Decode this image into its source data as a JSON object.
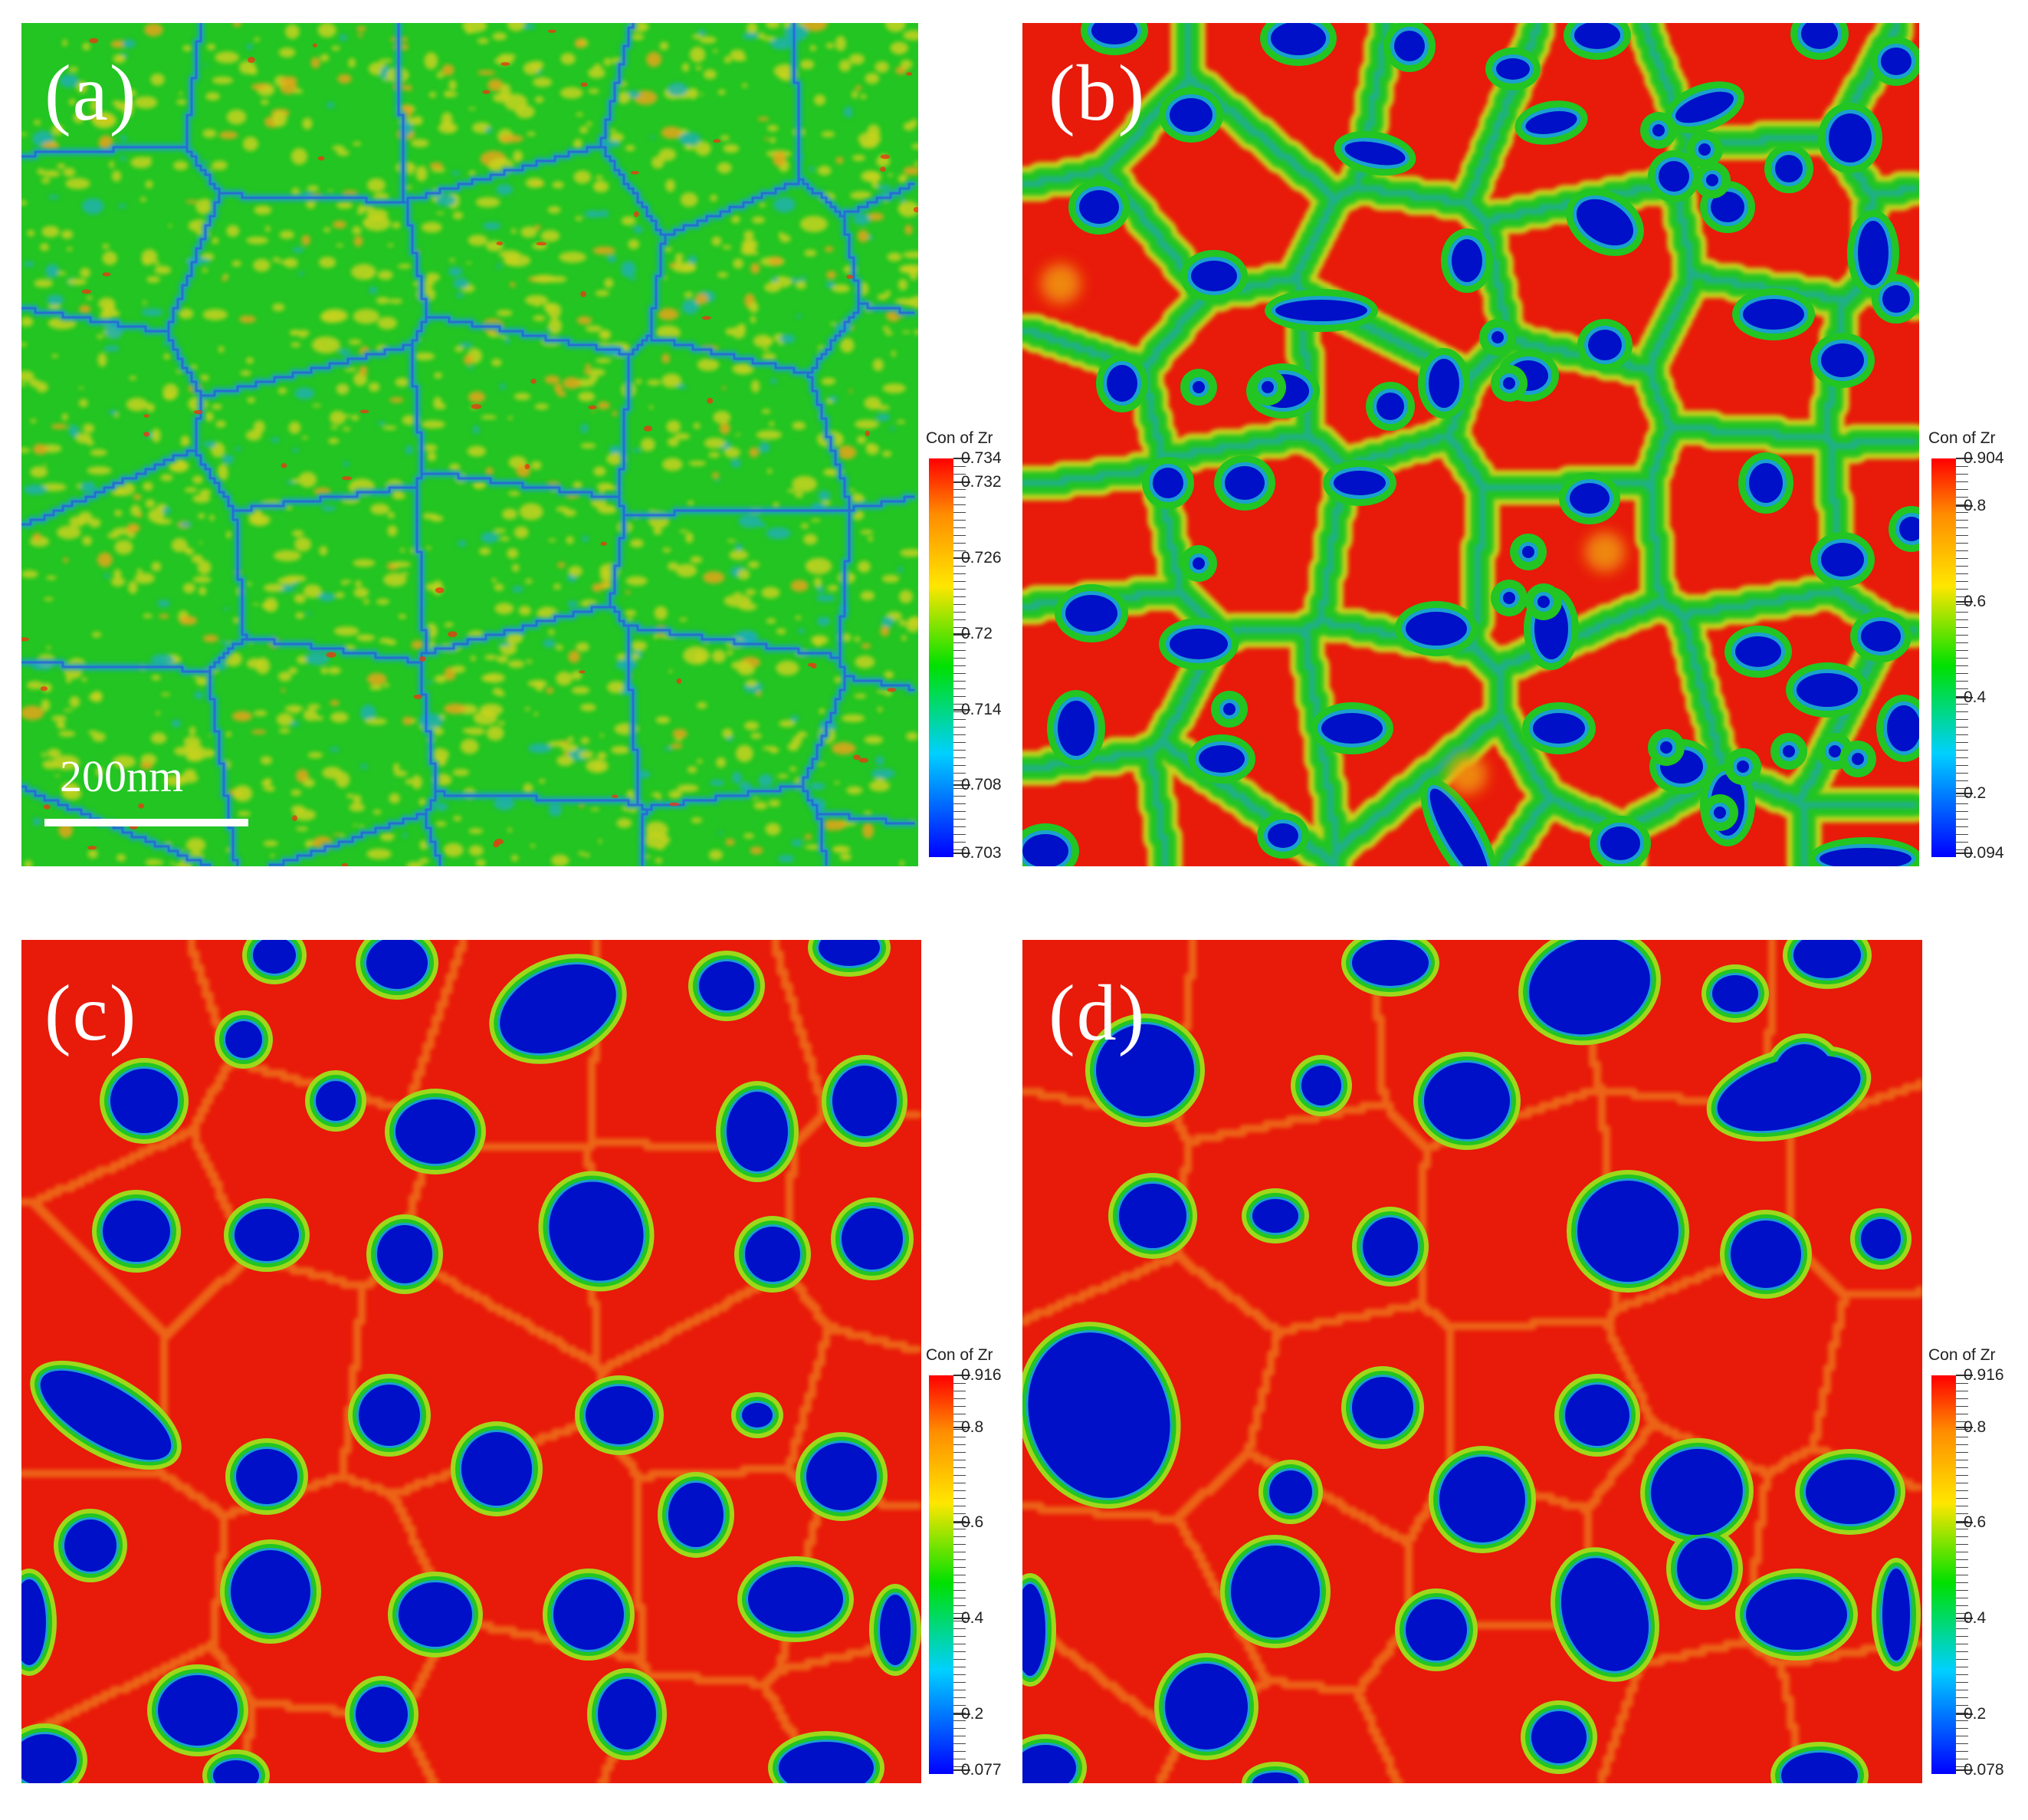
{
  "panels": [
    {
      "label": "(a)",
      "legend": {
        "title": "Con of Zr",
        "ticks": [
          "0.734",
          "0.732",
          "0.726",
          "0.72",
          "0.714",
          "0.708",
          "0.703"
        ]
      },
      "scalebar": "200nm"
    },
    {
      "label": "(b)",
      "legend": {
        "title": "Con of Zr",
        "ticks": [
          "0.904",
          "0.8",
          "0.6",
          "0.4",
          "0.2",
          "0.094"
        ]
      }
    },
    {
      "label": "(c)",
      "legend": {
        "title": "Con of Zr",
        "ticks": [
          "0.916",
          "0.8",
          "0.6",
          "0.4",
          "0.2",
          "0.077"
        ]
      }
    },
    {
      "label": "(d)",
      "legend": {
        "title": "Con of Zr",
        "ticks": [
          "0.916",
          "0.8",
          "0.6",
          "0.4",
          "0.2",
          "0.078"
        ]
      }
    }
  ],
  "colors": {
    "matrix_a": "#22c522",
    "matrix_rich": "#e81a0a",
    "precipitate": "#0010c8",
    "interface": "#22c522"
  }
}
